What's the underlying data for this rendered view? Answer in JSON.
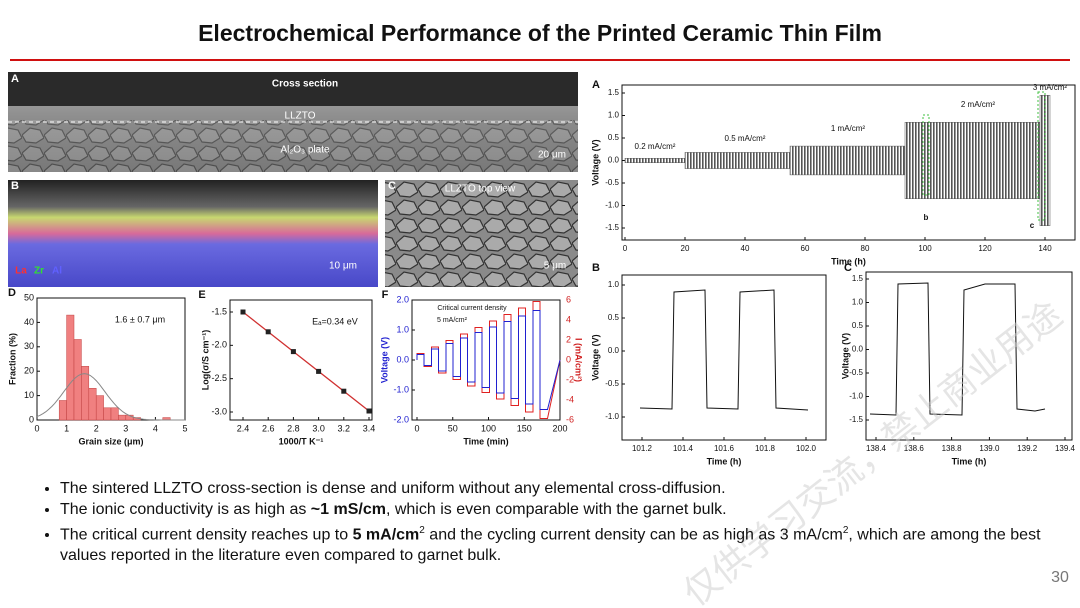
{
  "title": "Electrochemical Performance of the Printed Ceramic Thin Film",
  "page_number": "30",
  "watermark": "仅供学习交流，禁止商业用途",
  "panels": {
    "A": {
      "label": "A",
      "texts": [
        "Cross section",
        "LLZTO",
        "Al₂O₃ plate",
        "20 μm"
      ]
    },
    "B": {
      "label": "B",
      "texts": [
        "La",
        "Zr",
        "Al",
        "10 μm"
      ]
    },
    "C": {
      "label": "C",
      "texts": [
        "LLZTO top view",
        "5 μm"
      ]
    },
    "D": {
      "label": "D",
      "xticks": [
        "0",
        "1",
        "2",
        "3",
        "4",
        "5"
      ],
      "yticks": [
        "50",
        "40",
        "30",
        "20",
        "10",
        "0"
      ],
      "xlabel": "Grain size (μm)",
      "ylabel": "Fraction (%)",
      "annotation": "1.6 ± 0.7 μm"
    },
    "E": {
      "label": "E",
      "xticks": [
        "2.4",
        "2.6",
        "2.8",
        "3.0",
        "3.2",
        "3.4"
      ],
      "yticks": [
        "-1.5",
        "-2.0",
        "-2.5",
        "-3.0"
      ],
      "xlabel": "1000/T K⁻¹",
      "ylabel": "Log(σ/S cm⁻¹)",
      "annotation": "Eₐ=0.34 eV"
    },
    "F": {
      "label": "F",
      "xticks": [
        "0",
        "50",
        "100",
        "150",
        "200"
      ],
      "yticks": [
        "2.0",
        "1.0",
        "0.0",
        "-1.0",
        "-2.0"
      ],
      "y2ticks": [
        "6",
        "4",
        "2",
        "0",
        "-2",
        "-4",
        "-6"
      ],
      "xlabel": "Time (min)",
      "ylabel": "Voltage (V)",
      "y2label": "I (mA/cm²)",
      "annotations": [
        "Critical current density",
        "5 mA/cm²"
      ]
    },
    "RA": {
      "label": "A",
      "xticks": [
        "0",
        "20",
        "40",
        "60",
        "80",
        "100",
        "120",
        "140"
      ],
      "yticks": [
        "1.5",
        "1.0",
        "0.5",
        "0.0",
        "-0.5",
        "-1.0",
        "-1.5"
      ],
      "xlabel": "Time (h)",
      "ylabel": "Voltage (V)",
      "annotations": [
        "0.2 mA/cm²",
        "0.5 mA/cm²",
        "1 mA/cm²",
        "2 mA/cm²",
        "3 mA/cm²",
        "b",
        "c"
      ]
    },
    "RB": {
      "label": "B",
      "xticks": [
        "101.2",
        "101.4",
        "101.6",
        "101.8",
        "102.0"
      ],
      "yticks": [
        "1.0",
        "0.5",
        "0.0",
        "-0.5",
        "-1.0"
      ],
      "xlabel": "Time (h)",
      "ylabel": "Voltage (V)"
    },
    "RC": {
      "label": "C",
      "xticks": [
        "138.4",
        "138.6",
        "138.8",
        "139.0",
        "139.2",
        "139.4"
      ],
      "yticks": [
        "1.5",
        "1.0",
        "0.5",
        "0.0",
        "-0.5",
        "-1.0",
        "-1.5"
      ],
      "xlabel": "Time (h)",
      "ylabel": "Voltage (V)"
    }
  },
  "bullets": [
    {
      "parts": [
        "The sintered LLZTO cross-section is dense and uniform without any elemental cross-diffusion."
      ]
    },
    {
      "parts": [
        "The ionic conductivity is as high as ",
        {
          "text": "~1 mS/cm",
          "style": "bold"
        },
        ", which is even comparable with the garnet bulk."
      ]
    },
    {
      "parts": [
        "The critical current density reaches up to ",
        {
          "text": "5 mA/cm",
          "style": "bold"
        },
        {
          "text": "2",
          "style": "sup"
        },
        " and the cycling current density can be as high as 3 mA/cm",
        {
          "text": "2",
          "style": "sup"
        },
        ", which are among the best values reported in the literature even compared to garnet bulk."
      ]
    }
  ]
}
